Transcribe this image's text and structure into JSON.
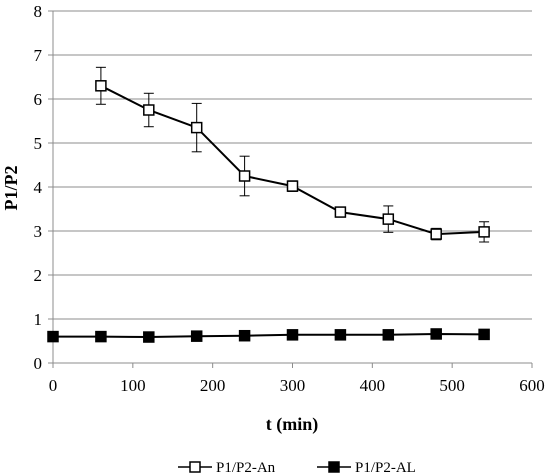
{
  "chart_data": {
    "type": "line",
    "title": "",
    "xlabel": "t (min)",
    "ylabel": "P1/P2",
    "xlim": [
      0,
      600
    ],
    "ylim": [
      0,
      8
    ],
    "x_ticks": [
      0,
      100,
      200,
      300,
      400,
      500,
      600
    ],
    "y_ticks": [
      0,
      1,
      2,
      3,
      4,
      5,
      6,
      7,
      8
    ],
    "grid": "horizontal",
    "legend_position": "bottom",
    "series": [
      {
        "name": "P1/P2-An",
        "marker": "open-square",
        "color": "#000000",
        "x": [
          60,
          120,
          180,
          240,
          300,
          360,
          420,
          480,
          540
        ],
        "y": [
          6.3,
          5.75,
          5.35,
          4.25,
          4.02,
          3.43,
          3.27,
          2.93,
          2.98
        ],
        "error": [
          0.42,
          0.38,
          0.55,
          0.45,
          0.12,
          0.06,
          0.3,
          0.13,
          0.23
        ]
      },
      {
        "name": "P1/P2-AL",
        "marker": "filled-square",
        "color": "#000000",
        "x": [
          0,
          60,
          120,
          180,
          240,
          300,
          360,
          420,
          480,
          540
        ],
        "y": [
          0.6,
          0.6,
          0.59,
          0.61,
          0.62,
          0.64,
          0.64,
          0.64,
          0.66,
          0.65
        ],
        "error": [
          0,
          0,
          0,
          0,
          0,
          0,
          0,
          0,
          0,
          0
        ]
      }
    ]
  }
}
